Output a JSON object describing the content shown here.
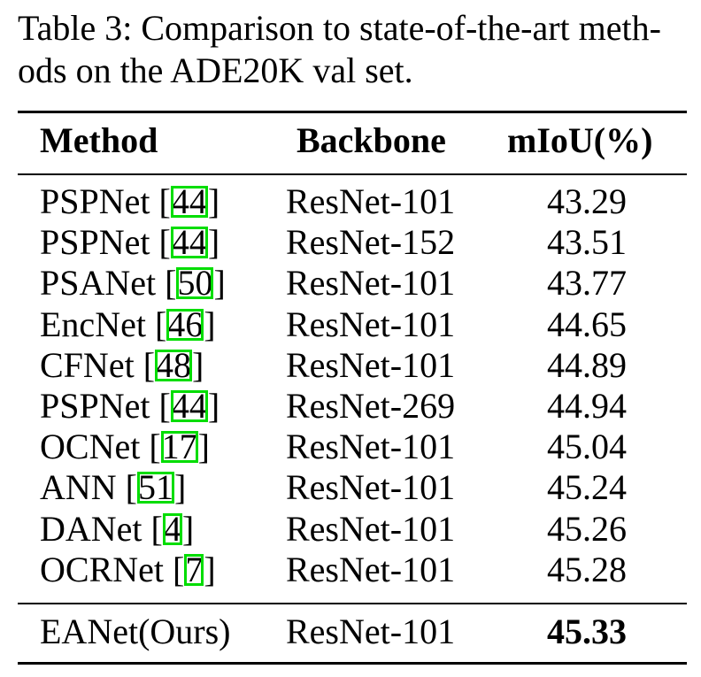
{
  "caption": {
    "line1": "Table 3: Comparison to state-of-the-art meth-",
    "line2": "ods on the ADE20K val set."
  },
  "table": {
    "headers": {
      "method": "Method",
      "backbone": "Backbone",
      "miou": "mIoU(%)"
    },
    "rows": [
      {
        "method": "PSPNet",
        "cite": "44",
        "backbone": "ResNet-101",
        "miou": "43.29"
      },
      {
        "method": "PSPNet",
        "cite": "44",
        "backbone": "ResNet-152",
        "miou": "43.51"
      },
      {
        "method": "PSANet",
        "cite": "50",
        "backbone": "ResNet-101",
        "miou": "43.77"
      },
      {
        "method": "EncNet",
        "cite": "46",
        "backbone": "ResNet-101",
        "miou": "44.65"
      },
      {
        "method": "CFNet",
        "cite": "48",
        "backbone": "ResNet-101",
        "miou": "44.89"
      },
      {
        "method": "PSPNet",
        "cite": "44",
        "backbone": "ResNet-269",
        "miou": "44.94"
      },
      {
        "method": "OCNet",
        "cite": "17",
        "backbone": "ResNet-101",
        "miou": "45.04"
      },
      {
        "method": "ANN",
        "cite": "51",
        "backbone": "ResNet-101",
        "miou": "45.24"
      },
      {
        "method": "DANet",
        "cite": "4",
        "backbone": "ResNet-101",
        "miou": "45.26"
      },
      {
        "method": "OCRNet",
        "cite": "7",
        "backbone": "ResNet-101",
        "miou": "45.28"
      }
    ],
    "ours": {
      "method": "EANet(Ours)",
      "backbone": "ResNet-101",
      "miou": "45.33"
    }
  },
  "colors": {
    "citation_box": "#00dd00",
    "text": "#000000",
    "background": "#ffffff"
  }
}
